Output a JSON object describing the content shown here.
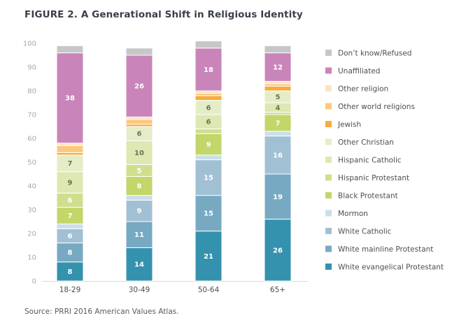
{
  "title": "FIGURE 2.  A Generational Shift in Religious Identity",
  "source": "Source: PRRI 2016 American Values Atlas.",
  "chart_data": {
    "type": "bar",
    "stacked": true,
    "title": "FIGURE 2.  A Generational Shift in Religious Identity",
    "xlabel": "",
    "ylabel": "",
    "ylim": [
      0,
      100
    ],
    "yticks": [
      0,
      10,
      20,
      30,
      40,
      50,
      60,
      70,
      80,
      90,
      100
    ],
    "grid": false,
    "legend_position": "right",
    "categories": [
      "18-29",
      "30-49",
      "50-64",
      "65+"
    ],
    "series": [
      {
        "name": "White evangelical Protestant",
        "color": "#3592ae",
        "label_color": "#ffffff",
        "values": [
          8,
          14,
          21,
          26
        ],
        "show_labels": true
      },
      {
        "name": "White mainline Protestant",
        "color": "#77aac2",
        "label_color": "#ffffff",
        "values": [
          8,
          11,
          15,
          19
        ],
        "show_labels": true
      },
      {
        "name": "White Catholic",
        "color": "#a2c0d3",
        "label_color": "#ffffff",
        "values": [
          6,
          9,
          15,
          16
        ],
        "show_labels": true
      },
      {
        "name": "Mormon",
        "color": "#cadfe9",
        "label_color": "#ffffff",
        "values": [
          2,
          2,
          2,
          2
        ],
        "show_labels": false
      },
      {
        "name": "Black Protestant",
        "color": "#c2d66a",
        "label_color": "#ffffff",
        "values": [
          7,
          8,
          9,
          7
        ],
        "show_labels": true
      },
      {
        "name": "Hispanic Protestant",
        "color": "#cfdf8e",
        "label_color": "#ffffff",
        "values": [
          6,
          5,
          2,
          1
        ],
        "show_labels": [
          true,
          true,
          false,
          false
        ]
      },
      {
        "name": "Hispanic Catholic",
        "color": "#dde8b2",
        "label_color": "#6d7352",
        "values": [
          9,
          10,
          6,
          4
        ],
        "show_labels": true
      },
      {
        "name": "Other Christian",
        "color": "#e5edc8",
        "label_color": "#6d7352",
        "values": [
          7,
          6,
          6,
          5
        ],
        "show_labels": true
      },
      {
        "name": "Jewish",
        "color": "#f6ad3d",
        "label_color": "#ffffff",
        "values": [
          1,
          1,
          2,
          2
        ],
        "show_labels": false
      },
      {
        "name": "Other world religions",
        "color": "#fac97f",
        "label_color": "#ffffff",
        "values": [
          3,
          2,
          1,
          1
        ],
        "show_labels": false
      },
      {
        "name": "Other religion",
        "color": "#fde3c3",
        "label_color": "#ffffff",
        "values": [
          1,
          1,
          1,
          1
        ],
        "show_labels": false
      },
      {
        "name": "Unaffiliated",
        "color": "#c985ba",
        "label_color": "#ffffff",
        "values": [
          38,
          26,
          18,
          12
        ],
        "show_labels": true
      },
      {
        "name": "Don't know/Refused",
        "color": "#c6c7c9",
        "label_color": "#ffffff",
        "values": [
          3,
          3,
          3,
          3
        ],
        "show_labels": false
      }
    ],
    "legend": [
      {
        "label": "Don’t know/Refused",
        "color": "#c6c7c9"
      },
      {
        "label": "Unaffiliated",
        "color": "#c985ba"
      },
      {
        "label": "Other religion",
        "color": "#fde3c3"
      },
      {
        "label": "Other world religions",
        "color": "#fac97f"
      },
      {
        "label": "Jewish",
        "color": "#f6ad3d"
      },
      {
        "label": "Other Christian",
        "color": "#e5edc8"
      },
      {
        "label": "Hispanic Catholic",
        "color": "#dde8b2"
      },
      {
        "label": "Hispanic Protestant",
        "color": "#cfdf8e"
      },
      {
        "label": "Black Protestant",
        "color": "#c2d66a"
      },
      {
        "label": "Mormon",
        "color": "#cadfe9"
      },
      {
        "label": "White Catholic",
        "color": "#a2c0d3"
      },
      {
        "label": "White mainline Protestant",
        "color": "#77aac2"
      },
      {
        "label": "White evangelical Protestant",
        "color": "#3592ae"
      }
    ]
  }
}
